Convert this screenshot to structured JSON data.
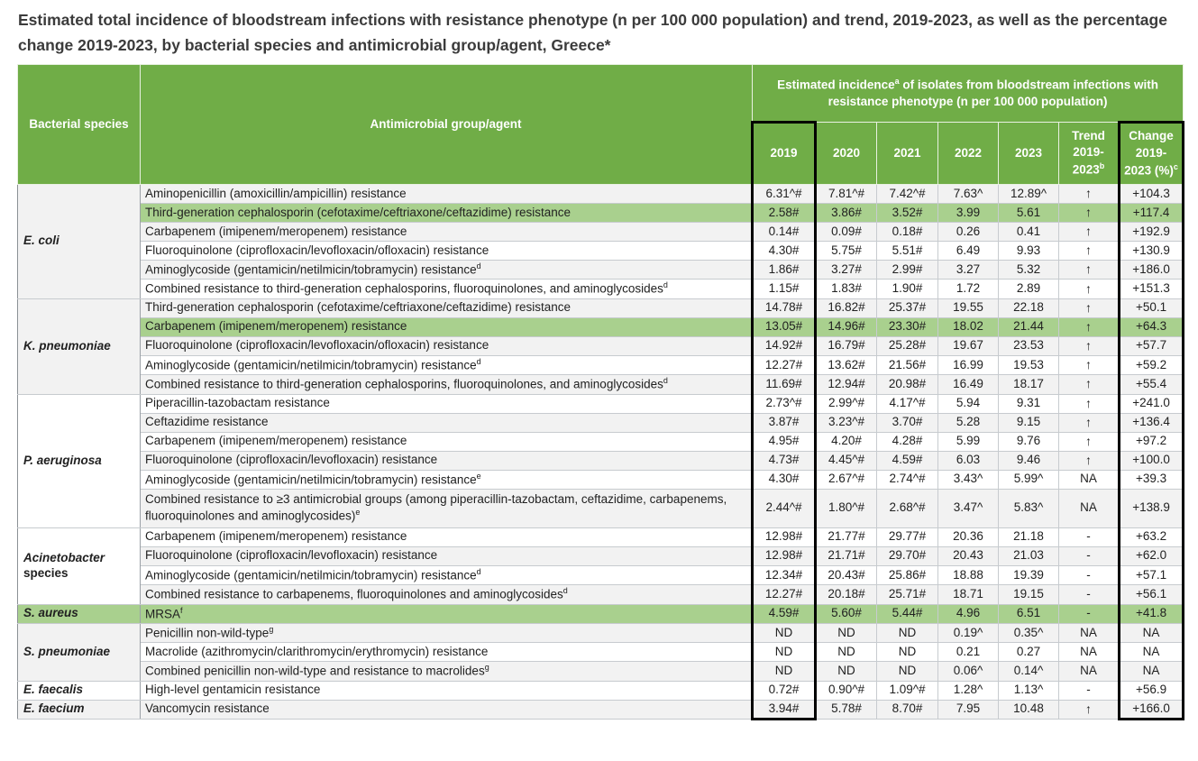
{
  "title": "Estimated total incidence of bloodstream infections with resistance phenotype (n per 100 000 population) and trend, 2019-2023, as well as the percentage change 2019-2023, by bacterial species and antimicrobial group/agent, Greece*",
  "colors": {
    "header_green": "#70ad47",
    "highlight_green": "#a9d08e",
    "row_shade": "#f2f2f2",
    "row_plain": "#ffffff",
    "box_border": "#000000"
  },
  "table": {
    "header": {
      "species": "Bacterial species",
      "agent": "Antimicrobial group/agent",
      "incidence_pre": "Estimated incidence",
      "incidence_sup": "a",
      "incidence_post": " of isolates from bloodstream infections with resistance phenotype (n per 100 000 population)",
      "years": [
        "2019",
        "2020",
        "2021",
        "2022",
        "2023"
      ],
      "trend_label": "Trend 2019-2023",
      "trend_sup": "b",
      "change_label": "Change 2019-2023 (%)",
      "change_sup": "c"
    },
    "sections": [
      {
        "species": "E. coli",
        "species_suffix": "",
        "rows": [
          {
            "agent": "Aminopenicillin (amoxicillin/ampicillin) resistance",
            "sup": "",
            "values": [
              "6.31^#",
              "7.81^#",
              "7.42^#",
              "7.63^",
              "12.89^"
            ],
            "trend": "↑",
            "change": "+104.3",
            "highlight": false
          },
          {
            "agent": "Third-generation cephalosporin (cefotaxime/ceftriaxone/ceftazidime) resistance",
            "sup": "",
            "values": [
              "2.58#",
              "3.86#",
              "3.52#",
              "3.99",
              "5.61"
            ],
            "trend": "↑",
            "change": "+117.4",
            "highlight": true
          },
          {
            "agent": "Carbapenem (imipenem/meropenem) resistance",
            "sup": "",
            "values": [
              "0.14#",
              "0.09#",
              "0.18#",
              "0.26",
              "0.41"
            ],
            "trend": "↑",
            "change": "+192.9",
            "highlight": false
          },
          {
            "agent": "Fluoroquinolone (ciprofloxacin/levofloxacin/ofloxacin) resistance",
            "sup": "",
            "values": [
              "4.30#",
              "5.75#",
              "5.51#",
              "6.49",
              "9.93"
            ],
            "trend": "↑",
            "change": "+130.9",
            "highlight": false
          },
          {
            "agent": "Aminoglycoside (gentamicin/netilmicin/tobramycin) resistance",
            "sup": "d",
            "values": [
              "1.86#",
              "3.27#",
              "2.99#",
              "3.27",
              "5.32"
            ],
            "trend": "↑",
            "change": "+186.0",
            "highlight": false
          },
          {
            "agent": "Combined resistance to third-generation cephalosporins, fluoroquinolones, and aminoglycosides",
            "sup": "d",
            "values": [
              "1.15#",
              "1.83#",
              "1.90#",
              "1.72",
              "2.89"
            ],
            "trend": "↑",
            "change": "+151.3",
            "highlight": false
          }
        ]
      },
      {
        "species": "K. pneumoniae",
        "species_suffix": "",
        "rows": [
          {
            "agent": "Third-generation cephalosporin (cefotaxime/ceftriaxone/ceftazidime) resistance",
            "sup": "",
            "values": [
              "14.78#",
              "16.82#",
              "25.37#",
              "19.55",
              "22.18"
            ],
            "trend": "↑",
            "change": "+50.1",
            "highlight": false
          },
          {
            "agent": "Carbapenem (imipenem/meropenem) resistance",
            "sup": "",
            "values": [
              "13.05#",
              "14.96#",
              "23.30#",
              "18.02",
              "21.44"
            ],
            "trend": "↑",
            "change": "+64.3",
            "highlight": true
          },
          {
            "agent": "Fluoroquinolone (ciprofloxacin/levofloxacin/ofloxacin) resistance",
            "sup": "",
            "values": [
              "14.92#",
              "16.79#",
              "25.28#",
              "19.67",
              "23.53"
            ],
            "trend": "↑",
            "change": "+57.7",
            "highlight": false
          },
          {
            "agent": "Aminoglycoside (gentamicin/netilmicin/tobramycin) resistance",
            "sup": "d",
            "values": [
              "12.27#",
              "13.62#",
              "21.56#",
              "16.99",
              "19.53"
            ],
            "trend": "↑",
            "change": "+59.2",
            "highlight": false
          },
          {
            "agent": "Combined resistance to third-generation cephalosporins, fluoroquinolones, and aminoglycosides",
            "sup": "d",
            "values": [
              "11.69#",
              "12.94#",
              "20.98#",
              "16.49",
              "18.17"
            ],
            "trend": "↑",
            "change": "+55.4",
            "highlight": false
          }
        ]
      },
      {
        "species": "P. aeruginosa",
        "species_suffix": "",
        "rows": [
          {
            "agent": "Piperacillin-tazobactam resistance",
            "sup": "",
            "values": [
              "2.73^#",
              "2.99^#",
              "4.17^#",
              "5.94",
              "9.31"
            ],
            "trend": "↑",
            "change": "+241.0",
            "highlight": false
          },
          {
            "agent": "Ceftazidime resistance",
            "sup": "",
            "values": [
              "3.87#",
              "3.23^#",
              "3.70#",
              "5.28",
              "9.15"
            ],
            "trend": "↑",
            "change": "+136.4",
            "highlight": false
          },
          {
            "agent": "Carbapenem (imipenem/meropenem) resistance",
            "sup": "",
            "values": [
              "4.95#",
              "4.20#",
              "4.28#",
              "5.99",
              "9.76"
            ],
            "trend": "↑",
            "change": "+97.2",
            "highlight": false
          },
          {
            "agent": "Fluoroquinolone (ciprofloxacin/levofloxacin) resistance",
            "sup": "",
            "values": [
              "4.73#",
              "4.45^#",
              "4.59#",
              "6.03",
              "9.46"
            ],
            "trend": "↑",
            "change": "+100.0",
            "highlight": false
          },
          {
            "agent": "Aminoglycoside (gentamicin/netilmicin/tobramycin) resistance",
            "sup": "e",
            "values": [
              "4.30#",
              "2.67^#",
              "2.74^#",
              "3.43^",
              "5.99^"
            ],
            "trend": "NA",
            "change": "+39.3",
            "highlight": false
          },
          {
            "agent": "Combined resistance to ≥3 antimicrobial groups (among piperacillin-tazobactam, ceftazidime, carbapenems, fluoroquinolones and aminoglycosides)",
            "sup": "e",
            "values": [
              "2.44^#",
              "1.80^#",
              "2.68^#",
              "3.47^",
              "5.83^"
            ],
            "trend": "NA",
            "change": "+138.9",
            "highlight": false,
            "tall": true
          }
        ]
      },
      {
        "species": "Acinetobacter",
        "species_suffix": "species",
        "rows": [
          {
            "agent": "Carbapenem (imipenem/meropenem) resistance",
            "sup": "",
            "values": [
              "12.98#",
              "21.77#",
              "29.77#",
              "20.36",
              "21.18"
            ],
            "trend": "-",
            "change": "+63.2",
            "highlight": false
          },
          {
            "agent": "Fluoroquinolone (ciprofloxacin/levofloxacin) resistance",
            "sup": "",
            "values": [
              "12.98#",
              "21.71#",
              "29.70#",
              "20.43",
              "21.03"
            ],
            "trend": "-",
            "change": "+62.0",
            "highlight": false
          },
          {
            "agent": "Aminoglycoside (gentamicin/netilmicin/tobramycin) resistance",
            "sup": "d",
            "values": [
              "12.34#",
              "20.43#",
              "25.86#",
              "18.88",
              "19.39"
            ],
            "trend": "-",
            "change": "+57.1",
            "highlight": false
          },
          {
            "agent": "Combined resistance to carbapenems, fluoroquinolones and aminoglycosides",
            "sup": "d",
            "values": [
              "12.27#",
              "20.18#",
              "25.71#",
              "18.71",
              "19.15"
            ],
            "trend": "-",
            "change": "+56.1",
            "highlight": false
          }
        ]
      },
      {
        "species": "S. aureus",
        "species_suffix": "",
        "rows": [
          {
            "agent": "MRSA",
            "sup": "f",
            "values": [
              "4.59#",
              "5.60#",
              "5.44#",
              "4.96",
              "6.51"
            ],
            "trend": "-",
            "change": "+41.8",
            "highlight": true
          }
        ]
      },
      {
        "species": "S. pneumoniae",
        "species_suffix": "",
        "rows": [
          {
            "agent": "Penicillin non-wild-type",
            "sup": "g",
            "values": [
              "ND",
              "ND",
              "ND",
              "0.19^",
              "0.35^"
            ],
            "trend": "NA",
            "change": "NA",
            "highlight": false
          },
          {
            "agent": "Macrolide (azithromycin/clarithromycin/erythromycin) resistance",
            "sup": "",
            "values": [
              "ND",
              "ND",
              "ND",
              "0.21",
              "0.27"
            ],
            "trend": "NA",
            "change": "NA",
            "highlight": false
          },
          {
            "agent": "Combined penicillin non-wild-type and resistance to macrolides",
            "sup": "g",
            "values": [
              "ND",
              "ND",
              "ND",
              "0.06^",
              "0.14^"
            ],
            "trend": "NA",
            "change": "NA",
            "highlight": false
          }
        ]
      },
      {
        "species": "E. faecalis",
        "species_suffix": "",
        "rows": [
          {
            "agent": "High-level gentamicin resistance",
            "sup": "",
            "values": [
              "0.72#",
              "0.90^#",
              "1.09^#",
              "1.28^",
              "1.13^"
            ],
            "trend": "-",
            "change": "+56.9",
            "highlight": false
          }
        ]
      },
      {
        "species": "E. faecium",
        "species_suffix": "",
        "rows": [
          {
            "agent": "Vancomycin resistance",
            "sup": "",
            "values": [
              "3.94#",
              "5.78#",
              "8.70#",
              "7.95",
              "10.48"
            ],
            "trend": "↑",
            "change": "+166.0",
            "highlight": false
          }
        ]
      }
    ]
  }
}
